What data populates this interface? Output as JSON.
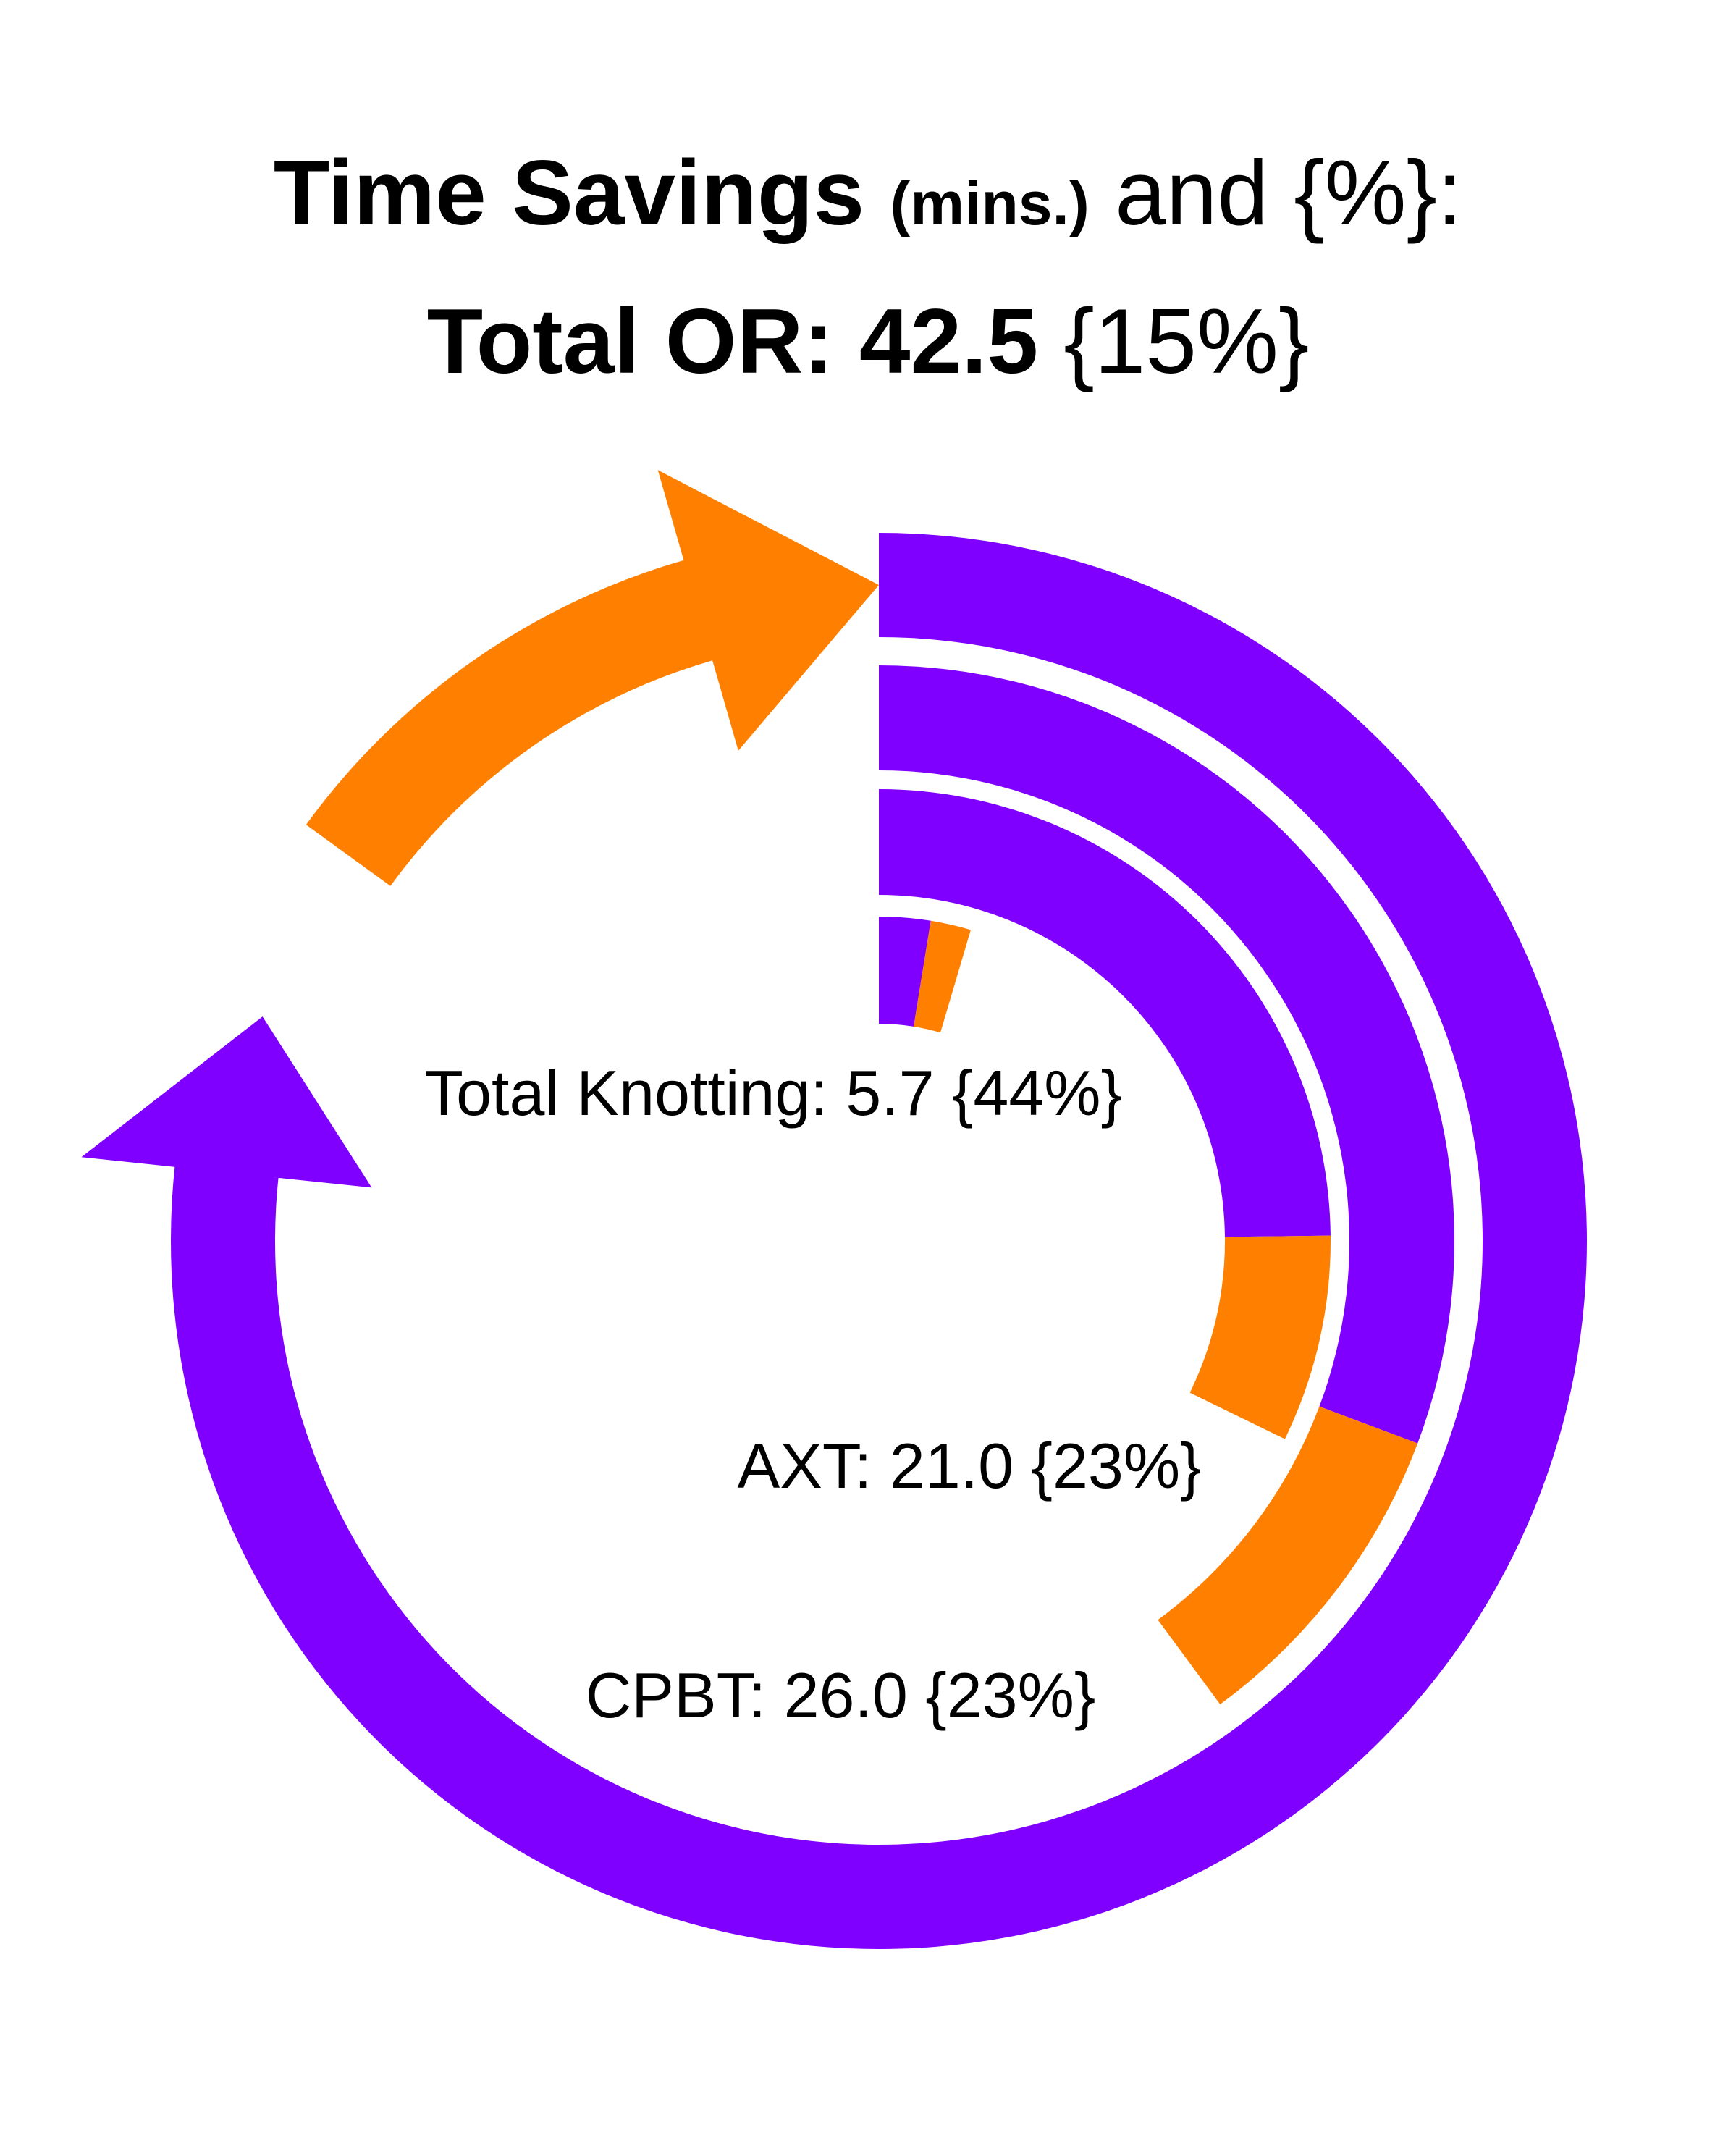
{
  "chart_data": {
    "type": "radial-bar",
    "title": "Time Savings",
    "title_unit": "(mins.)",
    "title_suffix": "and {%}:",
    "categories": [
      "Total OR:",
      "CPBT:",
      "AXT:",
      "Total Knotting:"
    ],
    "values": [
      42.5,
      26.0,
      21.0,
      5.7
    ],
    "value_labels": [
      "42.5",
      "26.0",
      "21.0",
      "5.7"
    ],
    "percents": [
      15,
      23,
      23,
      44
    ],
    "percent_labels": [
      "{15%}",
      "{23%}",
      "{23%}",
      "{44%}"
    ],
    "base_color": "#7f00ff",
    "savings_color": "#ff8000"
  }
}
